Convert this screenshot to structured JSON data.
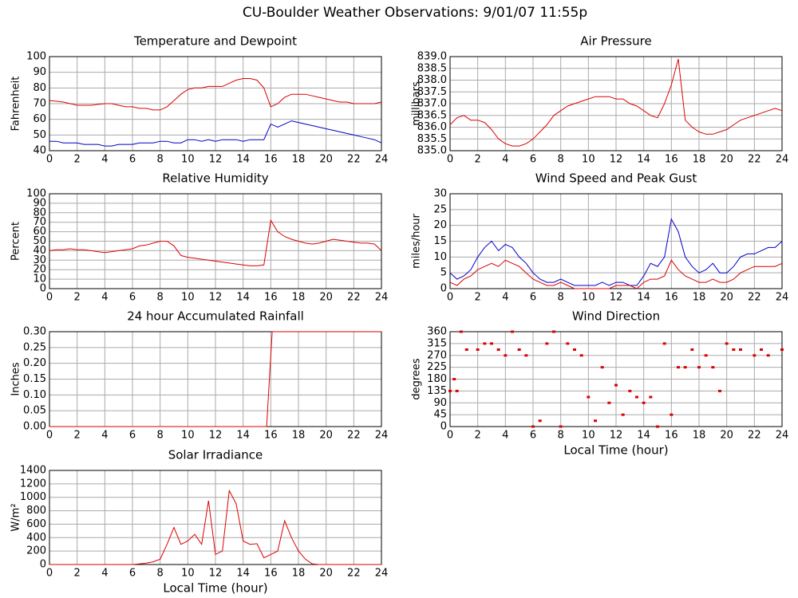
{
  "title": "CU-Boulder Weather Observations: 9/01/07 11:55p",
  "chart_data": [
    {
      "type": "line",
      "title": "Temperature and Dewpoint",
      "ylabel": "Fahrenheit",
      "x": [
        0,
        0.5,
        1,
        1.5,
        2,
        2.5,
        3,
        3.5,
        4,
        4.5,
        5,
        5.5,
        6,
        6.5,
        7,
        7.5,
        8,
        8.5,
        9,
        9.5,
        10,
        10.5,
        11,
        11.5,
        12,
        12.5,
        13,
        13.5,
        14,
        14.5,
        15,
        15.5,
        16,
        16.5,
        17,
        17.5,
        18,
        18.5,
        19,
        19.5,
        20,
        20.5,
        21,
        21.5,
        22,
        22.5,
        23,
        23.5,
        24
      ],
      "series": [
        {
          "color": "#dd0000",
          "values": [
            72,
            71.5,
            71,
            70,
            69,
            69,
            69,
            69.5,
            70,
            70,
            69,
            68,
            68,
            67,
            67,
            66,
            66,
            68,
            72,
            76,
            79,
            80,
            80,
            81,
            81,
            81,
            83,
            85,
            86,
            86,
            85,
            80,
            68,
            70,
            74,
            76,
            76,
            76,
            75,
            74,
            73,
            72,
            71,
            71,
            70,
            70,
            70,
            70,
            71
          ]
        },
        {
          "color": "#0000cc",
          "values": [
            46,
            46,
            45,
            45,
            45,
            44,
            44,
            44,
            43,
            43,
            44,
            44,
            44,
            45,
            45,
            45,
            46,
            46,
            45,
            45,
            47,
            47,
            46,
            47,
            46,
            47,
            47,
            47,
            46,
            47,
            47,
            47,
            57,
            55,
            57,
            59,
            58,
            57,
            56,
            55,
            54,
            53,
            52,
            51,
            50,
            49,
            48,
            47,
            45
          ]
        }
      ],
      "xlim": [
        0,
        24
      ],
      "xticks": [
        0,
        2,
        4,
        6,
        8,
        10,
        12,
        14,
        16,
        18,
        20,
        22,
        24
      ],
      "ylim": [
        40,
        100
      ],
      "yticks": [
        40,
        50,
        60,
        70,
        80,
        90,
        100
      ],
      "grid": true
    },
    {
      "type": "line",
      "title": "Air Pressure",
      "ylabel": "millibars",
      "x": [
        0,
        0.5,
        1,
        1.5,
        2,
        2.5,
        3,
        3.5,
        4,
        4.5,
        5,
        5.5,
        6,
        6.5,
        7,
        7.5,
        8,
        8.5,
        9,
        9.5,
        10,
        10.5,
        11,
        11.5,
        12,
        12.5,
        13,
        13.5,
        14,
        14.5,
        15,
        15.5,
        16,
        16.5,
        17,
        17.5,
        18,
        18.5,
        19,
        19.5,
        20,
        20.5,
        21,
        21.5,
        22,
        22.5,
        23,
        23.5,
        24
      ],
      "series": [
        {
          "color": "#dd0000",
          "values": [
            836.1,
            836.4,
            836.5,
            836.3,
            836.3,
            836.2,
            835.9,
            835.5,
            835.3,
            835.2,
            835.2,
            835.3,
            835.5,
            835.8,
            836.1,
            836.5,
            836.7,
            836.9,
            837.0,
            837.1,
            837.2,
            837.3,
            837.3,
            837.3,
            837.2,
            837.2,
            837.0,
            836.9,
            836.7,
            836.5,
            836.4,
            837.0,
            837.8,
            838.9,
            836.3,
            836.0,
            835.8,
            835.7,
            835.7,
            835.8,
            835.9,
            836.1,
            836.3,
            836.4,
            836.5,
            836.6,
            836.7,
            836.8,
            836.7
          ]
        }
      ],
      "xlim": [
        0,
        24
      ],
      "xticks": [
        0,
        2,
        4,
        6,
        8,
        10,
        12,
        14,
        16,
        18,
        20,
        22,
        24
      ],
      "ylim": [
        835,
        839
      ],
      "yticks": [
        {
          "value": 835,
          "label": "835.0"
        },
        835.5,
        {
          "value": 836,
          "label": "836.0"
        },
        836.5,
        {
          "value": 837,
          "label": "837.0"
        },
        837.5,
        {
          "value": 838,
          "label": "838.0"
        },
        838.5,
        {
          "value": 839,
          "label": "839.0"
        }
      ],
      "grid": true
    },
    {
      "type": "line",
      "title": "Relative Humidity",
      "ylabel": "Percent",
      "x": [
        0,
        0.5,
        1,
        1.5,
        2,
        2.5,
        3,
        3.5,
        4,
        4.5,
        5,
        5.5,
        6,
        6.5,
        7,
        7.5,
        8,
        8.5,
        9,
        9.5,
        10,
        10.5,
        11,
        11.5,
        12,
        12.5,
        13,
        13.5,
        14,
        14.5,
        15,
        15.5,
        16,
        16.5,
        17,
        17.5,
        18,
        18.5,
        19,
        19.5,
        20,
        20.5,
        21,
        21.5,
        22,
        22.5,
        23,
        23.5,
        24
      ],
      "series": [
        {
          "color": "#dd0000",
          "values": [
            40,
            41,
            41,
            42,
            41,
            41,
            40,
            39,
            38,
            39,
            40,
            41,
            42,
            45,
            46,
            48,
            50,
            50,
            45,
            35,
            33,
            32,
            31,
            30,
            29,
            28,
            27,
            26,
            25,
            24,
            24,
            25,
            72,
            60,
            55,
            52,
            50,
            48,
            47,
            48,
            50,
            52,
            51,
            50,
            49,
            48,
            48,
            47,
            40
          ]
        }
      ],
      "xlim": [
        0,
        24
      ],
      "xticks": [
        0,
        2,
        4,
        6,
        8,
        10,
        12,
        14,
        16,
        18,
        20,
        22,
        24
      ],
      "ylim": [
        0,
        100
      ],
      "yticks": [
        0,
        10,
        20,
        30,
        40,
        50,
        60,
        70,
        80,
        90,
        100
      ],
      "grid": true
    },
    {
      "type": "line",
      "title": "Wind Speed and Peak Gust",
      "ylabel": "miles/hour",
      "x": [
        0,
        0.5,
        1,
        1.5,
        2,
        2.5,
        3,
        3.5,
        4,
        4.5,
        5,
        5.5,
        6,
        6.5,
        7,
        7.5,
        8,
        8.5,
        9,
        9.5,
        10,
        10.5,
        11,
        11.5,
        12,
        12.5,
        13,
        13.5,
        14,
        14.5,
        15,
        15.5,
        16,
        16.5,
        17,
        17.5,
        18,
        18.5,
        19,
        19.5,
        20,
        20.5,
        21,
        21.5,
        22,
        22.5,
        23,
        23.5,
        24
      ],
      "series": [
        {
          "color": "#0000cc",
          "values": [
            5,
            3,
            4,
            6,
            10,
            13,
            15,
            12,
            14,
            13,
            10,
            8,
            5,
            3,
            2,
            2,
            3,
            2,
            1,
            1,
            1,
            1,
            2,
            1,
            2,
            2,
            1,
            1,
            4,
            8,
            7,
            10,
            22,
            18,
            10,
            7,
            5,
            6,
            8,
            5,
            5,
            7,
            10,
            11,
            11,
            12,
            13,
            13,
            15
          ]
        },
        {
          "color": "#dd0000",
          "values": [
            2,
            1,
            3,
            4,
            6,
            7,
            8,
            7,
            9,
            8,
            7,
            5,
            3,
            2,
            1,
            1,
            2,
            1,
            0,
            0,
            0,
            0,
            0,
            0,
            1,
            1,
            1,
            0,
            2,
            3,
            3,
            4,
            9,
            6,
            4,
            3,
            2,
            2,
            3,
            2,
            2,
            3,
            5,
            6,
            7,
            7,
            7,
            7,
            8
          ]
        }
      ],
      "xlim": [
        0,
        24
      ],
      "xticks": [
        0,
        2,
        4,
        6,
        8,
        10,
        12,
        14,
        16,
        18,
        20,
        22,
        24
      ],
      "ylim": [
        0,
        30
      ],
      "yticks": [
        0,
        5,
        10,
        15,
        20,
        25,
        30
      ],
      "grid": true
    },
    {
      "type": "line",
      "title": "24 hour Accumulated Rainfall",
      "ylabel": "Inches",
      "x": [
        0,
        15.7,
        16.1,
        24
      ],
      "series": [
        {
          "color": "#dd0000",
          "values": [
            0,
            0,
            0.3,
            0.3
          ]
        }
      ],
      "xlim": [
        0,
        24
      ],
      "xticks": [
        0,
        2,
        4,
        6,
        8,
        10,
        12,
        14,
        16,
        18,
        20,
        22,
        24
      ],
      "ylim": [
        0,
        0.3
      ],
      "yticks": [
        {
          "value": 0,
          "label": "0.00"
        },
        0.05,
        {
          "value": 0.1,
          "label": "0.10"
        },
        0.15,
        {
          "value": 0.2,
          "label": "0.20"
        },
        0.25,
        {
          "value": 0.3,
          "label": "0.30"
        }
      ],
      "grid": true
    },
    {
      "type": "scatter",
      "title": "Wind Direction",
      "ylabel": "degrees",
      "xlabel": "Local Time (hour)",
      "x": [
        0,
        0.3,
        0.5,
        0.8,
        1.2,
        2,
        2.5,
        3,
        3.5,
        4,
        4.5,
        5,
        5.5,
        6,
        6.5,
        7,
        7.5,
        8,
        8.5,
        9,
        9.5,
        10,
        10.5,
        11,
        11.5,
        12,
        12.5,
        13,
        13.5,
        14,
        14.5,
        15,
        15.5,
        16,
        16.5,
        17,
        17.5,
        18,
        18.5,
        19,
        19.5,
        20,
        20.5,
        21,
        22,
        22.5,
        23,
        24
      ],
      "series": [
        {
          "color": "#dd0000",
          "values": [
            135,
            180,
            135,
            360,
            292,
            292,
            315,
            315,
            292,
            270,
            360,
            292,
            270,
            0,
            22,
            315,
            360,
            0,
            315,
            292,
            270,
            112,
            22,
            225,
            90,
            157,
            45,
            135,
            112,
            90,
            112,
            0,
            315,
            45,
            225,
            225,
            292,
            225,
            270,
            225,
            135,
            315,
            292,
            292,
            270,
            292,
            270,
            292
          ]
        }
      ],
      "xlim": [
        0,
        24
      ],
      "xticks": [
        0,
        2,
        4,
        6,
        8,
        10,
        12,
        14,
        16,
        18,
        20,
        22,
        24
      ],
      "ylim": [
        0,
        360
      ],
      "yticks": [
        0,
        45,
        90,
        135,
        180,
        225,
        270,
        315,
        360
      ],
      "grid": true
    },
    {
      "type": "line",
      "title": "Solar Irradiance",
      "ylabel": "W/m²",
      "xlabel": "Local Time (hour)",
      "x": [
        0,
        0.5,
        1,
        1.5,
        2,
        2.5,
        3,
        3.5,
        4,
        4.5,
        5,
        5.5,
        6,
        6.5,
        7,
        7.5,
        8,
        8.5,
        9,
        9.5,
        10,
        10.5,
        11,
        11.5,
        12,
        12.5,
        13,
        13.5,
        14,
        14.5,
        15,
        15.5,
        16,
        16.5,
        17,
        17.5,
        18,
        18.5,
        19,
        19.5,
        20,
        20.5,
        21,
        21.5,
        22,
        22.5,
        23,
        23.5,
        24
      ],
      "series": [
        {
          "color": "#dd0000",
          "values": [
            0,
            0,
            0,
            0,
            0,
            0,
            0,
            0,
            0,
            0,
            0,
            0,
            0,
            10,
            20,
            40,
            80,
            300,
            550,
            300,
            350,
            450,
            300,
            950,
            150,
            200,
            1100,
            900,
            350,
            300,
            310,
            100,
            150,
            200,
            650,
            400,
            200,
            80,
            10,
            0,
            0,
            0,
            0,
            0,
            0,
            0,
            0,
            0,
            0
          ]
        }
      ],
      "xlim": [
        0,
        24
      ],
      "xticks": [
        0,
        2,
        4,
        6,
        8,
        10,
        12,
        14,
        16,
        18,
        20,
        22,
        24
      ],
      "ylim": [
        0,
        1400
      ],
      "yticks": [
        0,
        200,
        400,
        600,
        800,
        1000,
        1200,
        1400
      ],
      "grid": true
    }
  ]
}
